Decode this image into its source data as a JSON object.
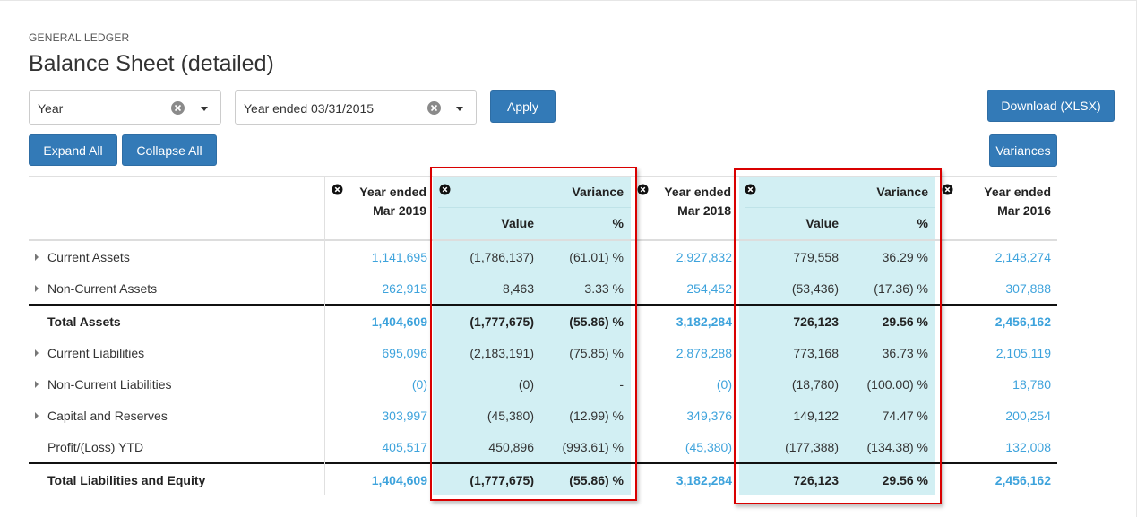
{
  "page": {
    "kicker": "GENERAL LEDGER",
    "title": "Balance Sheet (detailed)"
  },
  "filters": {
    "period_type": {
      "value": "Year"
    },
    "period": {
      "value": "Year ended 03/31/2015"
    },
    "apply_label": "Apply"
  },
  "toolbar": {
    "download_label": "Download (XLSX)",
    "expand_label": "Expand All",
    "collapse_label": "Collapse All",
    "variances_label": "Variances"
  },
  "columns": {
    "year_2019": "Year ended\nMar 2019",
    "variance_1": "Variance",
    "variance_1_value": "Value",
    "variance_1_pct": "%",
    "year_2018": "Year ended\nMar 2018",
    "variance_2": "Variance",
    "variance_2_value": "Value",
    "variance_2_pct": "%",
    "year_2016": "Year ended\nMar 2016"
  },
  "rows": [
    {
      "label": "Current Assets",
      "expandable": true,
      "bold": false,
      "y2019": "1,141,695",
      "v1": "(1,786,137)",
      "p1": "(61.01) %",
      "y2018": "2,927,832",
      "v2": "779,558",
      "p2": "36.29 %",
      "y2016": "2,148,274"
    },
    {
      "label": "Non-Current Assets",
      "expandable": true,
      "bold": false,
      "y2019": "262,915",
      "v1": "8,463",
      "p1": "3.33 %",
      "y2018": "254,452",
      "v2": "(53,436)",
      "p2": "(17.36) %",
      "y2016": "307,888"
    },
    {
      "label": "Total Assets",
      "expandable": false,
      "bold": true,
      "y2019": "1,404,609",
      "v1": "(1,777,675)",
      "p1": "(55.86) %",
      "y2018": "3,182,284",
      "v2": "726,123",
      "p2": "29.56 %",
      "y2016": "2,456,162"
    },
    {
      "label": "Current Liabilities",
      "expandable": true,
      "bold": false,
      "y2019": "695,096",
      "v1": "(2,183,191)",
      "p1": "(75.85) %",
      "y2018": "2,878,288",
      "v2": "773,168",
      "p2": "36.73 %",
      "y2016": "2,105,119"
    },
    {
      "label": "Non-Current Liabilities",
      "expandable": true,
      "bold": false,
      "y2019": "(0)",
      "v1": "(0)",
      "p1": "-",
      "y2018": "(0)",
      "v2": "(18,780)",
      "p2": "(100.00) %",
      "y2016": "18,780"
    },
    {
      "label": "Capital and Reserves",
      "expandable": true,
      "bold": false,
      "y2019": "303,997",
      "v1": "(45,380)",
      "p1": "(12.99) %",
      "y2018": "349,376",
      "v2": "149,122",
      "p2": "74.47 %",
      "y2016": "200,254"
    },
    {
      "label": "Profit/(Loss) YTD",
      "expandable": false,
      "bold": false,
      "y2019": "405,517",
      "v1": "450,896",
      "p1": "(993.61) %",
      "y2018": "(45,380)",
      "v2": "(177,388)",
      "p2": "(134.38) %",
      "y2016": "132,008"
    },
    {
      "label": "Total Liabilities and Equity",
      "expandable": false,
      "bold": true,
      "y2019": "1,404,609",
      "v1": "(1,777,675)",
      "p1": "(55.86) %",
      "y2018": "3,182,284",
      "v2": "726,123",
      "p2": "29.56 %",
      "y2016": "2,456,162"
    }
  ],
  "colors": {
    "primary_button": "#337ab7",
    "link_value": "#3ea3dc",
    "variance_shade": "#d2eff3",
    "highlight_box": "#d90000"
  }
}
